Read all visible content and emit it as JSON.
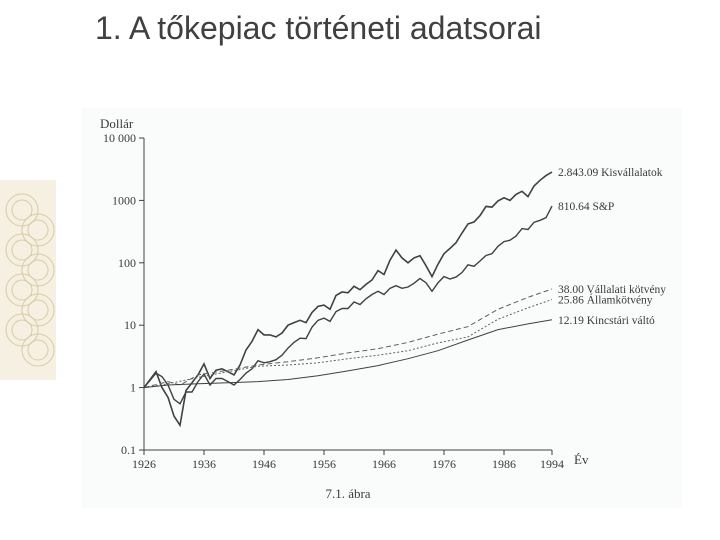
{
  "title": "1.  A tőkepiac történeti adatsorai",
  "chart": {
    "type": "line",
    "caption": "7.1. ábra",
    "ylabel": "Dollár",
    "xlabel": "Év",
    "background_color": "#fafcfc",
    "axis_color": "#404040",
    "tick_fontsize": 12,
    "label_fontsize": 13,
    "caption_fontsize": 13,
    "x": {
      "ticks": [
        1926,
        1936,
        1946,
        1956,
        1966,
        1976,
        1986,
        1994
      ],
      "min": 1926,
      "max": 1994
    },
    "y": {
      "scale": "log",
      "ticks": [
        0.1,
        1,
        10,
        100,
        1000,
        10000
      ],
      "tick_labels": [
        "0.1",
        "1",
        "10",
        "100",
        "1000",
        "10 000"
      ],
      "min": 0.1,
      "max": 10000
    },
    "series": [
      {
        "name": "Kisvállalatok",
        "end_label": "2.843.09 Kisvállalatok",
        "color": "#404040",
        "width": 1.6,
        "dash": "",
        "points": [
          [
            1926,
            1
          ],
          [
            1928,
            1.8
          ],
          [
            1929,
            1.0
          ],
          [
            1930,
            0.7
          ],
          [
            1931,
            0.35
          ],
          [
            1932,
            0.25
          ],
          [
            1933,
            0.9
          ],
          [
            1934,
            1.2
          ],
          [
            1935,
            1.6
          ],
          [
            1936,
            2.4
          ],
          [
            1937,
            1.4
          ],
          [
            1938,
            1.9
          ],
          [
            1939,
            2.0
          ],
          [
            1940,
            1.8
          ],
          [
            1941,
            1.6
          ],
          [
            1942,
            2.3
          ],
          [
            1943,
            4.0
          ],
          [
            1944,
            5.5
          ],
          [
            1945,
            8.5
          ],
          [
            1946,
            7.0
          ],
          [
            1947,
            7.0
          ],
          [
            1948,
            6.5
          ],
          [
            1949,
            7.5
          ],
          [
            1950,
            10
          ],
          [
            1951,
            11
          ],
          [
            1952,
            12
          ],
          [
            1953,
            11
          ],
          [
            1954,
            16
          ],
          [
            1955,
            20
          ],
          [
            1956,
            21
          ],
          [
            1957,
            18
          ],
          [
            1958,
            30
          ],
          [
            1959,
            34
          ],
          [
            1960,
            33
          ],
          [
            1961,
            42
          ],
          [
            1962,
            37
          ],
          [
            1963,
            45
          ],
          [
            1964,
            53
          ],
          [
            1965,
            75
          ],
          [
            1966,
            65
          ],
          [
            1967,
            110
          ],
          [
            1968,
            160
          ],
          [
            1969,
            120
          ],
          [
            1970,
            100
          ],
          [
            1971,
            120
          ],
          [
            1972,
            130
          ],
          [
            1973,
            90
          ],
          [
            1974,
            60
          ],
          [
            1975,
            95
          ],
          [
            1976,
            140
          ],
          [
            1977,
            170
          ],
          [
            1978,
            210
          ],
          [
            1979,
            300
          ],
          [
            1980,
            420
          ],
          [
            1981,
            450
          ],
          [
            1982,
            570
          ],
          [
            1983,
            800
          ],
          [
            1984,
            780
          ],
          [
            1985,
            980
          ],
          [
            1986,
            1100
          ],
          [
            1987,
            1000
          ],
          [
            1988,
            1250
          ],
          [
            1989,
            1400
          ],
          [
            1990,
            1150
          ],
          [
            1991,
            1700
          ],
          [
            1992,
            2100
          ],
          [
            1993,
            2500
          ],
          [
            1994,
            2843
          ]
        ]
      },
      {
        "name": "S&P",
        "end_label": "810.64 S&P",
        "color": "#404040",
        "width": 1.4,
        "dash": "",
        "points": [
          [
            1926,
            1
          ],
          [
            1928,
            1.7
          ],
          [
            1929,
            1.5
          ],
          [
            1930,
            1.1
          ],
          [
            1931,
            0.65
          ],
          [
            1932,
            0.55
          ],
          [
            1933,
            0.85
          ],
          [
            1934,
            0.85
          ],
          [
            1935,
            1.25
          ],
          [
            1936,
            1.65
          ],
          [
            1937,
            1.1
          ],
          [
            1938,
            1.4
          ],
          [
            1939,
            1.4
          ],
          [
            1940,
            1.25
          ],
          [
            1941,
            1.1
          ],
          [
            1942,
            1.35
          ],
          [
            1943,
            1.7
          ],
          [
            1944,
            2.0
          ],
          [
            1945,
            2.7
          ],
          [
            1946,
            2.5
          ],
          [
            1947,
            2.6
          ],
          [
            1948,
            2.8
          ],
          [
            1949,
            3.3
          ],
          [
            1950,
            4.3
          ],
          [
            1951,
            5.3
          ],
          [
            1952,
            6.2
          ],
          [
            1953,
            6.1
          ],
          [
            1954,
            9.3
          ],
          [
            1955,
            12
          ],
          [
            1956,
            13
          ],
          [
            1957,
            11.5
          ],
          [
            1958,
            16.5
          ],
          [
            1959,
            18.5
          ],
          [
            1960,
            18.5
          ],
          [
            1961,
            23.5
          ],
          [
            1962,
            21.5
          ],
          [
            1963,
            26.5
          ],
          [
            1964,
            31
          ],
          [
            1965,
            35
          ],
          [
            1966,
            31
          ],
          [
            1967,
            39
          ],
          [
            1968,
            43
          ],
          [
            1969,
            39
          ],
          [
            1970,
            41
          ],
          [
            1971,
            47
          ],
          [
            1972,
            56
          ],
          [
            1973,
            48
          ],
          [
            1974,
            35
          ],
          [
            1975,
            48
          ],
          [
            1976,
            60
          ],
          [
            1977,
            55
          ],
          [
            1978,
            59
          ],
          [
            1979,
            70
          ],
          [
            1980,
            93
          ],
          [
            1981,
            88
          ],
          [
            1982,
            107
          ],
          [
            1983,
            131
          ],
          [
            1984,
            140
          ],
          [
            1985,
            184
          ],
          [
            1986,
            219
          ],
          [
            1987,
            230
          ],
          [
            1988,
            268
          ],
          [
            1989,
            353
          ],
          [
            1990,
            342
          ],
          [
            1991,
            446
          ],
          [
            1992,
            480
          ],
          [
            1993,
            528
          ],
          [
            1994,
            810
          ]
        ]
      },
      {
        "name": "Vállalati kötvény",
        "end_label": "38.00 Vállalati kötvény",
        "color": "#606060",
        "width": 1.0,
        "dash": "5,3",
        "points": [
          [
            1926,
            1
          ],
          [
            1930,
            1.25
          ],
          [
            1932,
            1.1
          ],
          [
            1935,
            1.6
          ],
          [
            1940,
            1.9
          ],
          [
            1945,
            2.3
          ],
          [
            1950,
            2.6
          ],
          [
            1955,
            3.0
          ],
          [
            1960,
            3.6
          ],
          [
            1965,
            4.2
          ],
          [
            1970,
            5.3
          ],
          [
            1975,
            7.2
          ],
          [
            1980,
            9.5
          ],
          [
            1985,
            18
          ],
          [
            1990,
            28
          ],
          [
            1994,
            38
          ]
        ]
      },
      {
        "name": "Államkötvény",
        "end_label": "25.86 Államkötvény",
        "color": "#606060",
        "width": 1.0,
        "dash": "2,2",
        "points": [
          [
            1926,
            1
          ],
          [
            1930,
            1.15
          ],
          [
            1935,
            1.45
          ],
          [
            1940,
            1.8
          ],
          [
            1945,
            2.2
          ],
          [
            1950,
            2.3
          ],
          [
            1955,
            2.5
          ],
          [
            1960,
            2.9
          ],
          [
            1965,
            3.3
          ],
          [
            1970,
            3.9
          ],
          [
            1975,
            5.2
          ],
          [
            1980,
            6.5
          ],
          [
            1985,
            12.5
          ],
          [
            1990,
            19
          ],
          [
            1994,
            25.86
          ]
        ]
      },
      {
        "name": "Kincstári váltó",
        "end_label": "12.19 Kincstári váltó",
        "color": "#404040",
        "width": 1.0,
        "dash": "",
        "points": [
          [
            1926,
            1
          ],
          [
            1930,
            1.1
          ],
          [
            1935,
            1.15
          ],
          [
            1940,
            1.2
          ],
          [
            1945,
            1.25
          ],
          [
            1950,
            1.35
          ],
          [
            1955,
            1.55
          ],
          [
            1960,
            1.85
          ],
          [
            1965,
            2.25
          ],
          [
            1970,
            2.9
          ],
          [
            1975,
            3.9
          ],
          [
            1980,
            5.8
          ],
          [
            1985,
            8.5
          ],
          [
            1990,
            10.5
          ],
          [
            1994,
            12.19
          ]
        ]
      }
    ]
  },
  "ornament": {
    "color": "#d9c9a3",
    "bg": "#f6f0e2"
  }
}
